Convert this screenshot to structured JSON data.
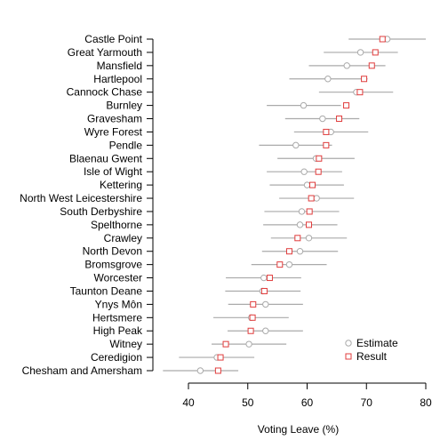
{
  "chart_data": {
    "type": "dot-interval",
    "xlabel": "Voting Leave (%)",
    "xlim": [
      33,
      80
    ],
    "xticks": [
      40,
      50,
      60,
      70,
      80
    ],
    "colors": {
      "estimate": "#aaaaaa",
      "result": "#e03c3c",
      "interval": "#aaaaaa"
    },
    "legend": {
      "position": "bottom-right",
      "entries": [
        {
          "name": "Estimate",
          "marker": "circle"
        },
        {
          "name": "Result",
          "marker": "square"
        }
      ]
    },
    "rows": [
      {
        "label": "Castle Point",
        "estimate": 73.5,
        "result": 72.7,
        "lo": 67.0,
        "hi": 80.0
      },
      {
        "label": "Great Yarmouth",
        "estimate": 69.0,
        "result": 71.5,
        "lo": 62.8,
        "hi": 75.3
      },
      {
        "label": "Mansfield",
        "estimate": 66.7,
        "result": 70.9,
        "lo": 60.3,
        "hi": 73.2
      },
      {
        "label": "Hartlepool",
        "estimate": 63.5,
        "result": 69.6,
        "lo": 57.0,
        "hi": 70.2
      },
      {
        "label": "Cannock Chase",
        "estimate": 68.3,
        "result": 68.9,
        "lo": 62.0,
        "hi": 74.5
      },
      {
        "label": "Burnley",
        "estimate": 59.4,
        "result": 66.6,
        "lo": 53.2,
        "hi": 65.7
      },
      {
        "label": "Gravesham",
        "estimate": 62.6,
        "result": 65.4,
        "lo": 56.3,
        "hi": 68.8
      },
      {
        "label": "Wyre Forest",
        "estimate": 64.0,
        "result": 63.2,
        "lo": 57.8,
        "hi": 70.3
      },
      {
        "label": "Pendle",
        "estimate": 58.1,
        "result": 63.2,
        "lo": 51.9,
        "hi": 64.2
      },
      {
        "label": "Blaenau Gwent",
        "estimate": 61.5,
        "result": 62.0,
        "lo": 55.0,
        "hi": 68.0
      },
      {
        "label": "Isle of Wight",
        "estimate": 59.5,
        "result": 61.9,
        "lo": 53.2,
        "hi": 65.9
      },
      {
        "label": "Kettering",
        "estimate": 60.0,
        "result": 60.9,
        "lo": 53.7,
        "hi": 66.2
      },
      {
        "label": "North West Leicestershire",
        "estimate": 61.6,
        "result": 60.7,
        "lo": 55.3,
        "hi": 67.9
      },
      {
        "label": "South Derbyshire",
        "estimate": 59.1,
        "result": 60.4,
        "lo": 52.8,
        "hi": 65.4
      },
      {
        "label": "Spelthorne",
        "estimate": 58.8,
        "result": 60.3,
        "lo": 52.6,
        "hi": 65.1
      },
      {
        "label": "Crawley",
        "estimate": 60.3,
        "result": 58.4,
        "lo": 53.9,
        "hi": 66.7
      },
      {
        "label": "North Devon",
        "estimate": 58.8,
        "result": 57.0,
        "lo": 52.4,
        "hi": 65.2
      },
      {
        "label": "Bromsgrove",
        "estimate": 57.0,
        "result": 55.4,
        "lo": 50.6,
        "hi": 63.3
      },
      {
        "label": "Worcester",
        "estimate": 52.7,
        "result": 53.7,
        "lo": 46.3,
        "hi": 59.0
      },
      {
        "label": "Taunton Deane",
        "estimate": 52.5,
        "result": 52.8,
        "lo": 46.2,
        "hi": 58.9
      },
      {
        "label": "Ynys Môn",
        "estimate": 53.0,
        "result": 50.9,
        "lo": 46.7,
        "hi": 59.3
      },
      {
        "label": "Hertsmere",
        "estimate": 50.6,
        "result": 50.8,
        "lo": 44.2,
        "hi": 56.9
      },
      {
        "label": "High Peak",
        "estimate": 53.0,
        "result": 50.5,
        "lo": 46.6,
        "hi": 59.3
      },
      {
        "label": "Witney",
        "estimate": 50.2,
        "result": 46.3,
        "lo": 43.9,
        "hi": 56.5
      },
      {
        "label": "Ceredigion",
        "estimate": 44.8,
        "result": 45.4,
        "lo": 38.4,
        "hi": 51.1
      },
      {
        "label": "Chesham and Amersham",
        "estimate": 42.0,
        "result": 45.0,
        "lo": 35.7,
        "hi": 48.4
      }
    ]
  }
}
